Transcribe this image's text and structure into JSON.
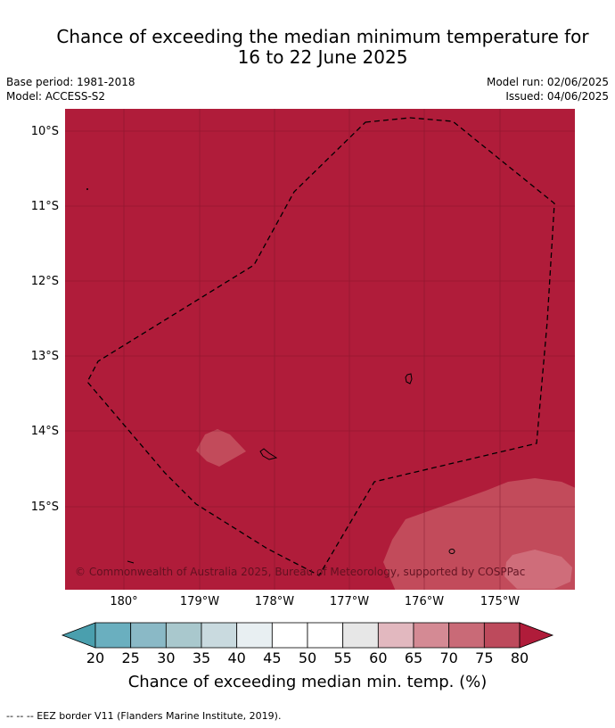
{
  "title": {
    "line1": "Chance of exceeding the median minimum temperature for",
    "line2": "16 to 22 June 2025"
  },
  "meta": {
    "base_period": "Base period: 1981-2018",
    "model": "Model: ACCESS-S2",
    "model_run": "Model run: 02/06/2025",
    "issued": "Issued: 04/06/2025"
  },
  "axes": {
    "lat_labels": [
      "10°S",
      "11°S",
      "12°S",
      "13°S",
      "14°S",
      "15°S"
    ],
    "lon_labels": [
      "180°",
      "179°W",
      "178°W",
      "177°W",
      "176°W",
      "175°W"
    ]
  },
  "copyright": "© Commonwealth of Australia 2025, Bureau of Meteorology, supported by COSPPac",
  "colorbar": {
    "ticks": [
      "20",
      "25",
      "30",
      "35",
      "40",
      "45",
      "50",
      "55",
      "60",
      "65",
      "70",
      "75",
      "80"
    ],
    "colors": [
      "#4a9fae",
      "#6aafbf",
      "#8ab9c6",
      "#a9c8cd",
      "#c9dadf",
      "#e8eff2",
      "#ffffff",
      "#ffffff",
      "#e7e7e7",
      "#e2b8bf",
      "#d48a94",
      "#c96a77",
      "#bd4a5c",
      "#b01c3a"
    ],
    "label": "Chance of exceeding median min. temp. (%)"
  },
  "map_colors": {
    "background": "#b01c3a",
    "patch_mid": "#c24b5b",
    "patch_light": "#cf6d7a"
  },
  "footnote": "--  --  -- EEZ border V11 (Flanders Marine Institute, 2019)."
}
